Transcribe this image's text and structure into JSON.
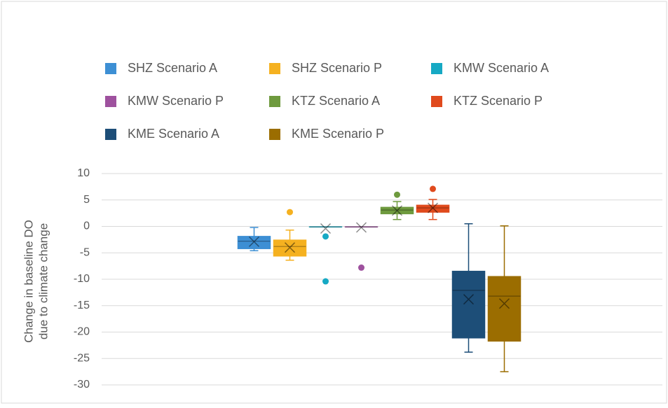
{
  "chart_data": {
    "type": "box",
    "ylabel": [
      "Change in baseline DO",
      "due to climate change"
    ],
    "ylim": [
      -30,
      10
    ],
    "yticks": [
      -30,
      -25,
      -20,
      -15,
      -10,
      -5,
      0,
      5,
      10
    ],
    "grid": true,
    "series": [
      {
        "name": "SHZ Scenario A",
        "color": "#3d8fd4",
        "min": -4.6,
        "q1": -4.2,
        "median": -2.8,
        "q3": -1.9,
        "max": -0.2,
        "mean": -2.9,
        "outliers": []
      },
      {
        "name": "SHZ Scenario P",
        "color": "#f5b120",
        "min": -6.4,
        "q1": -5.6,
        "median": -3.8,
        "q3": -2.6,
        "max": -0.7,
        "mean": -4.0,
        "outliers": [
          2.7
        ]
      },
      {
        "name": "KMW Scenario A",
        "color": "#16a9c4",
        "min": -0.1,
        "q1": -0.1,
        "median": -0.1,
        "q3": -0.1,
        "max": -0.1,
        "mean": -0.4,
        "outliers": [
          -1.9,
          -10.4
        ]
      },
      {
        "name": "KMW Scenario P",
        "color": "#9e519e",
        "min": -0.1,
        "q1": -0.1,
        "median": -0.1,
        "q3": -0.1,
        "max": -0.1,
        "mean": -0.2,
        "outliers": [
          -7.8
        ]
      },
      {
        "name": "KTZ Scenario A",
        "color": "#6e9a3e",
        "min": 1.3,
        "q1": 2.4,
        "median": 3.1,
        "q3": 3.6,
        "max": 4.7,
        "mean": 3.0,
        "outliers": [
          6.0
        ]
      },
      {
        "name": "KTZ Scenario P",
        "color": "#e04a1d",
        "min": 1.3,
        "q1": 2.7,
        "median": 3.5,
        "q3": 4.0,
        "max": 5.1,
        "mean": 3.5,
        "outliers": [
          7.1
        ]
      },
      {
        "name": "KME Scenario A",
        "color": "#1d4e78",
        "min": -23.8,
        "q1": -21.1,
        "median": -12.1,
        "q3": -8.5,
        "max": 0.5,
        "mean": -13.8,
        "outliers": []
      },
      {
        "name": "KME Scenario P",
        "color": "#9b6d00",
        "min": -27.5,
        "q1": -21.7,
        "median": -13.2,
        "q3": -9.5,
        "max": 0.1,
        "mean": -14.6,
        "outliers": []
      }
    ]
  }
}
